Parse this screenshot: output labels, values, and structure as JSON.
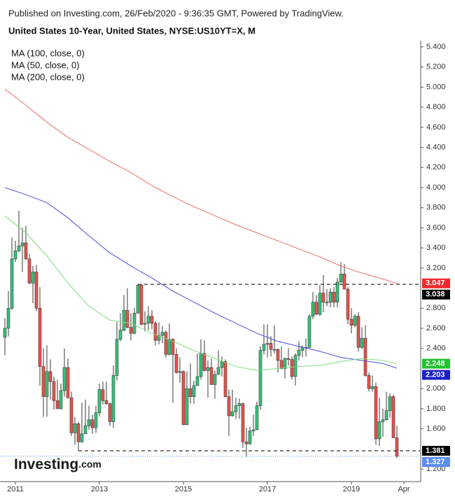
{
  "chart_data": {
    "type": "candlestick",
    "header": "Published on Investing.com, 26/Feb/2020 - 9:36:35 GMT, Powered by TradingView.",
    "title": "United States 10-Year, United States, NYSE:US10YT=X, M",
    "logo": {
      "main": "Investing",
      "suffix": ".com"
    },
    "up_color": "#36c27a",
    "down_color": "#e8524a",
    "border_color": "#3a3a3a",
    "last_price_color": "#5b8def",
    "ylim": [
      1.2,
      5.4
    ],
    "yticks": [
      {
        "value": 1.2,
        "label": "1.200"
      },
      {
        "value": 1.6,
        "label": "1.600"
      },
      {
        "value": 1.8,
        "label": "1.800"
      },
      {
        "value": 2.0,
        "label": "2.000"
      },
      {
        "value": 2.4,
        "label": "2.400"
      },
      {
        "value": 2.6,
        "label": "2.600"
      },
      {
        "value": 2.8,
        "label": "2.800"
      },
      {
        "value": 3.2,
        "label": "3.200"
      },
      {
        "value": 3.4,
        "label": "3.400"
      },
      {
        "value": 3.6,
        "label": "3.600"
      },
      {
        "value": 3.8,
        "label": "3.800"
      },
      {
        "value": 4.0,
        "label": "4.000"
      },
      {
        "value": 4.2,
        "label": "4.200"
      },
      {
        "value": 4.4,
        "label": "4.400"
      },
      {
        "value": 4.6,
        "label": "4.600"
      },
      {
        "value": 4.8,
        "label": "4.800"
      },
      {
        "value": 5.0,
        "label": "5.000"
      },
      {
        "value": 5.2,
        "label": "5.200"
      },
      {
        "value": 5.4,
        "label": "5.400"
      }
    ],
    "xticks": [
      {
        "value": "2011-01",
        "label": "2011"
      },
      {
        "value": "2013-01",
        "label": "2013"
      },
      {
        "value": "2015-01",
        "label": "2015"
      },
      {
        "value": "2017-01",
        "label": "2017"
      },
      {
        "value": "2019-01",
        "label": "2019"
      },
      {
        "value": "2020-04",
        "label": "Apr"
      }
    ],
    "x": [
      "2010-10",
      "2010-11",
      "2010-12",
      "2011-01",
      "2011-02",
      "2011-03",
      "2011-04",
      "2011-05",
      "2011-06",
      "2011-07",
      "2011-08",
      "2011-09",
      "2011-10",
      "2011-11",
      "2011-12",
      "2012-01",
      "2012-02",
      "2012-03",
      "2012-04",
      "2012-05",
      "2012-06",
      "2012-07",
      "2012-08",
      "2012-09",
      "2012-10",
      "2012-11",
      "2012-12",
      "2013-01",
      "2013-02",
      "2013-03",
      "2013-04",
      "2013-05",
      "2013-06",
      "2013-07",
      "2013-08",
      "2013-09",
      "2013-10",
      "2013-11",
      "2013-12",
      "2014-01",
      "2014-02",
      "2014-03",
      "2014-04",
      "2014-05",
      "2014-06",
      "2014-07",
      "2014-08",
      "2014-09",
      "2014-10",
      "2014-11",
      "2014-12",
      "2015-01",
      "2015-02",
      "2015-03",
      "2015-04",
      "2015-05",
      "2015-06",
      "2015-07",
      "2015-08",
      "2015-09",
      "2015-10",
      "2015-11",
      "2015-12",
      "2016-01",
      "2016-02",
      "2016-03",
      "2016-04",
      "2016-05",
      "2016-06",
      "2016-07",
      "2016-08",
      "2016-09",
      "2016-10",
      "2016-11",
      "2016-12",
      "2017-01",
      "2017-02",
      "2017-03",
      "2017-04",
      "2017-05",
      "2017-06",
      "2017-07",
      "2017-08",
      "2017-09",
      "2017-10",
      "2017-11",
      "2017-12",
      "2018-01",
      "2018-02",
      "2018-03",
      "2018-04",
      "2018-05",
      "2018-06",
      "2018-07",
      "2018-08",
      "2018-09",
      "2018-10",
      "2018-11",
      "2018-12",
      "2019-01",
      "2019-02",
      "2019-03",
      "2019-04",
      "2019-05",
      "2019-06",
      "2019-07",
      "2019-08",
      "2019-09",
      "2019-10",
      "2019-11",
      "2019-12",
      "2020-01",
      "2020-02"
    ],
    "open": [
      2.51,
      2.6,
      2.8,
      3.29,
      3.37,
      3.42,
      3.45,
      3.29,
      3.05,
      3.16,
      2.8,
      2.22,
      1.92,
      2.17,
      2.07,
      1.88,
      1.8,
      1.98,
      2.21,
      1.91,
      1.56,
      1.65,
      1.47,
      1.55,
      1.63,
      1.69,
      1.61,
      1.76,
      1.99,
      1.88,
      1.85,
      1.67,
      2.13,
      2.49,
      2.58,
      2.78,
      2.61,
      2.55,
      2.75,
      3.03,
      2.64,
      2.65,
      2.72,
      2.65,
      2.48,
      2.53,
      2.56,
      2.34,
      2.49,
      2.34,
      2.16,
      2.17,
      1.64,
      2.0,
      1.92,
      2.03,
      2.12,
      2.35,
      2.18,
      2.21,
      2.04,
      2.14,
      2.21,
      2.27,
      1.92,
      1.73,
      1.77,
      1.83,
      1.85,
      1.47,
      1.45,
      1.58,
      1.59,
      1.83,
      2.38,
      2.44,
      2.45,
      2.39,
      2.39,
      2.28,
      2.2,
      2.3,
      2.29,
      2.12,
      2.33,
      2.38,
      2.41,
      2.41,
      2.72,
      2.86,
      2.74,
      2.95,
      2.86,
      2.86,
      2.96,
      2.86,
      3.06,
      3.14,
      2.99,
      2.69,
      2.63,
      2.72,
      2.41,
      2.5,
      2.13,
      2.0,
      2.02,
      1.5,
      1.67,
      1.69,
      1.78,
      1.92,
      1.51
    ],
    "high": [
      2.7,
      2.97,
      3.5,
      3.47,
      3.77,
      3.6,
      3.62,
      3.34,
      3.22,
      3.23,
      3.01,
      2.4,
      2.43,
      2.29,
      2.12,
      2.09,
      2.05,
      2.4,
      2.3,
      1.97,
      1.72,
      1.67,
      1.86,
      1.89,
      1.83,
      1.74,
      1.83,
      2.05,
      2.07,
      2.07,
      1.86,
      2.23,
      2.66,
      2.75,
      2.93,
      3.0,
      2.75,
      2.8,
      3.038,
      3.04,
      2.77,
      2.82,
      2.78,
      2.67,
      2.66,
      2.62,
      2.58,
      2.65,
      2.5,
      2.4,
      2.31,
      2.18,
      2.17,
      2.25,
      2.08,
      2.35,
      2.49,
      2.48,
      2.28,
      2.3,
      2.18,
      2.38,
      2.32,
      2.29,
      1.99,
      1.99,
      1.91,
      1.9,
      1.86,
      1.61,
      1.62,
      1.74,
      1.87,
      2.42,
      2.64,
      2.64,
      2.52,
      2.63,
      2.4,
      2.42,
      2.31,
      2.4,
      2.32,
      2.35,
      2.47,
      2.43,
      2.5,
      2.74,
      2.96,
      2.93,
      3.03,
      3.13,
      2.99,
      3.0,
      3.01,
      3.1,
      3.26,
      3.24,
      3.01,
      2.8,
      2.74,
      2.76,
      2.61,
      2.63,
      2.16,
      2.13,
      2.06,
      1.91,
      1.8,
      1.97,
      1.95,
      1.94,
      1.63
    ],
    "low": [
      2.33,
      2.52,
      2.78,
      3.26,
      3.36,
      3.16,
      3.28,
      3.04,
      2.85,
      2.77,
      2.03,
      1.72,
      1.72,
      1.89,
      1.79,
      1.8,
      1.79,
      1.92,
      1.9,
      1.53,
      1.44,
      1.381,
      1.46,
      1.55,
      1.59,
      1.55,
      1.56,
      1.72,
      1.84,
      1.84,
      1.63,
      1.61,
      2.08,
      2.47,
      2.57,
      2.6,
      2.48,
      2.54,
      2.75,
      2.63,
      2.57,
      2.58,
      2.59,
      2.43,
      2.44,
      2.45,
      2.31,
      2.33,
      1.86,
      2.15,
      2.06,
      1.64,
      1.64,
      1.85,
      1.85,
      2.03,
      2.09,
      2.17,
      1.91,
      2.04,
      1.9,
      2.14,
      2.12,
      1.92,
      1.53,
      1.72,
      1.7,
      1.7,
      1.41,
      1.32,
      1.44,
      1.53,
      1.59,
      1.79,
      2.34,
      2.31,
      2.32,
      2.35,
      2.16,
      2.19,
      2.1,
      2.23,
      2.09,
      2.03,
      2.28,
      2.31,
      2.32,
      2.4,
      2.69,
      2.73,
      2.72,
      2.76,
      2.82,
      2.81,
      2.81,
      2.81,
      3.05,
      2.99,
      2.64,
      2.55,
      2.61,
      2.37,
      2.39,
      2.12,
      1.97,
      1.97,
      1.44,
      1.43,
      1.52,
      1.68,
      1.71,
      1.51,
      1.31
    ],
    "close": [
      2.6,
      2.8,
      3.29,
      3.37,
      3.42,
      3.45,
      3.29,
      3.05,
      3.16,
      2.8,
      2.22,
      1.92,
      2.17,
      2.07,
      1.88,
      1.8,
      1.98,
      2.21,
      1.91,
      1.56,
      1.65,
      1.47,
      1.55,
      1.63,
      1.69,
      1.61,
      1.76,
      1.99,
      1.88,
      1.85,
      1.67,
      2.13,
      2.49,
      2.58,
      2.78,
      2.61,
      2.55,
      2.75,
      3.03,
      2.64,
      2.65,
      2.72,
      2.65,
      2.48,
      2.53,
      2.56,
      2.34,
      2.49,
      2.34,
      2.16,
      2.17,
      1.64,
      2.0,
      1.92,
      2.03,
      2.12,
      2.35,
      2.18,
      2.21,
      2.04,
      2.14,
      2.21,
      2.27,
      1.92,
      1.73,
      1.77,
      1.83,
      1.85,
      1.47,
      1.45,
      1.58,
      1.59,
      1.83,
      2.38,
      2.44,
      2.45,
      2.39,
      2.39,
      2.28,
      2.2,
      2.3,
      2.29,
      2.12,
      2.33,
      2.38,
      2.41,
      2.41,
      2.72,
      2.86,
      2.74,
      2.95,
      2.86,
      2.86,
      2.96,
      2.86,
      3.06,
      3.14,
      2.99,
      2.69,
      2.63,
      2.72,
      2.41,
      2.5,
      2.13,
      2.0,
      2.02,
      1.5,
      1.67,
      1.69,
      1.78,
      1.92,
      1.51,
      1.327
    ],
    "series": [
      {
        "name": "MA (100, close, 0)",
        "color": "#4a4ee0",
        "badge_color": "#1a1fc8",
        "x": [
          "2010-10",
          "2011-04",
          "2011-10",
          "2012-04",
          "2012-10",
          "2013-04",
          "2013-10",
          "2014-04",
          "2014-10",
          "2015-04",
          "2015-10",
          "2016-04",
          "2016-10",
          "2017-04",
          "2017-10",
          "2018-04",
          "2018-10",
          "2019-04",
          "2019-10",
          "2020-02"
        ],
        "values": [
          4.0,
          3.93,
          3.85,
          3.7,
          3.52,
          3.35,
          3.22,
          3.1,
          2.97,
          2.86,
          2.75,
          2.65,
          2.55,
          2.47,
          2.42,
          2.37,
          2.31,
          2.28,
          2.25,
          2.203
        ]
      },
      {
        "name": "MA (50, close, 0)",
        "color": "#7ddc7d",
        "badge_color": "#22c232",
        "x": [
          "2010-10",
          "2011-04",
          "2011-10",
          "2012-04",
          "2012-10",
          "2013-04",
          "2013-10",
          "2014-04",
          "2014-10",
          "2015-04",
          "2015-10",
          "2016-04",
          "2016-10",
          "2017-04",
          "2017-10",
          "2018-04",
          "2018-10",
          "2019-04",
          "2019-10",
          "2020-02"
        ],
        "values": [
          3.72,
          3.55,
          3.32,
          3.05,
          2.82,
          2.68,
          2.65,
          2.55,
          2.47,
          2.38,
          2.3,
          2.22,
          2.18,
          2.2,
          2.22,
          2.23,
          2.27,
          2.3,
          2.28,
          2.248
        ]
      },
      {
        "name": "MA (200, close, 0)",
        "color": "#ee6e66",
        "badge_color": "#f0282d",
        "x": [
          "2010-10",
          "2011-04",
          "2011-10",
          "2012-04",
          "2012-10",
          "2013-04",
          "2013-10",
          "2014-04",
          "2014-10",
          "2015-04",
          "2015-10",
          "2016-04",
          "2016-10",
          "2017-04",
          "2017-10",
          "2018-04",
          "2018-10",
          "2019-04",
          "2019-10",
          "2020-02"
        ],
        "values": [
          4.98,
          4.82,
          4.65,
          4.5,
          4.38,
          4.26,
          4.15,
          4.02,
          3.91,
          3.81,
          3.72,
          3.63,
          3.55,
          3.47,
          3.39,
          3.31,
          3.22,
          3.15,
          3.09,
          3.047
        ]
      }
    ],
    "levels": [
      {
        "value": 3.038,
        "from": "2013-12",
        "color": "#000000"
      },
      {
        "value": 1.381,
        "from": "2012-07",
        "color": "#000000"
      }
    ]
  }
}
